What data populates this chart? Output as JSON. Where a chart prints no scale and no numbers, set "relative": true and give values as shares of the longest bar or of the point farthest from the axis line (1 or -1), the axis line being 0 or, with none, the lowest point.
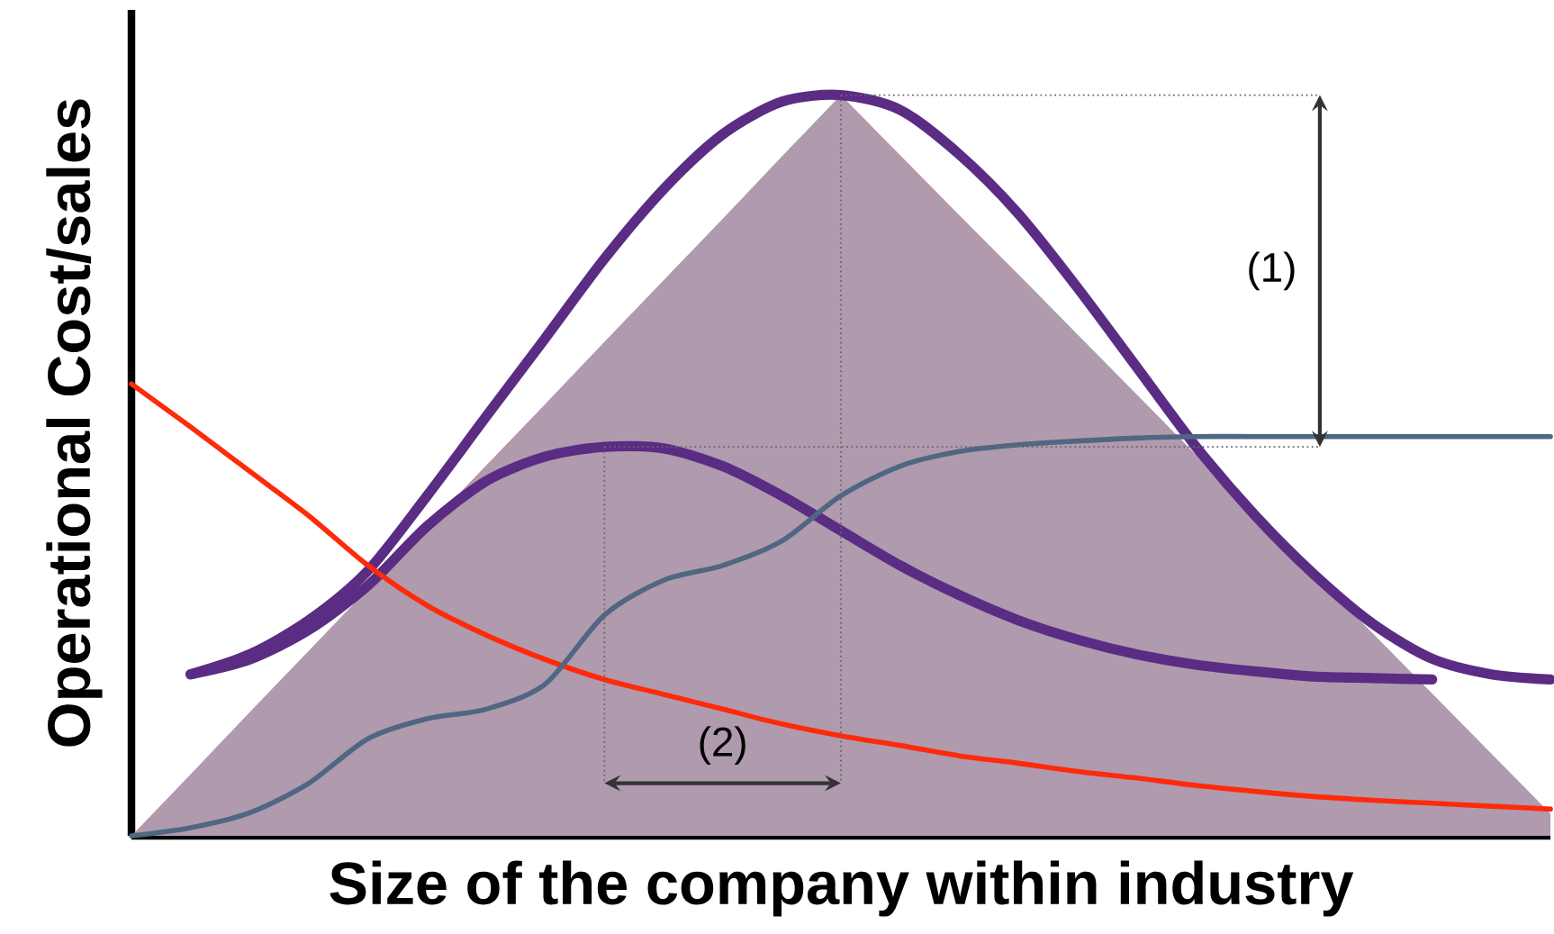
{
  "chart_data": {
    "type": "line",
    "relative": true,
    "xlabel": "Size of the company within industry",
    "ylabel": "Operational Cost/sales",
    "categories": [
      null,
      null,
      null,
      null,
      null,
      null,
      null,
      null,
      null,
      null,
      null,
      null,
      null,
      null,
      null,
      null,
      null,
      null,
      null,
      null,
      null,
      null,
      null,
      null,
      null
    ],
    "annotations": [
      "(1)",
      "(2)"
    ],
    "ref_lines": [
      {
        "axis": "y",
        "value": 1.0,
        "line_style": "dotted",
        "color": "#666666"
      },
      {
        "axis": "y",
        "value": 0.525,
        "line_style": "dotted",
        "color": "#666666"
      }
    ],
    "series": [
      {
        "type": "area",
        "color": "#b09aae",
        "values": [
          0,
          0.083,
          0.167,
          0.25,
          0.333,
          0.417,
          0.5,
          0.583,
          0.667,
          0.75,
          0.833,
          0.917,
          1.0,
          0.919,
          0.838,
          0.758,
          0.677,
          0.596,
          0.515,
          0.434,
          0.353,
          0.273,
          0.192,
          0.111,
          0.03
        ]
      },
      {
        "color": "#5b2c83",
        "values": [
          null,
          0.218,
          0.245,
          0.291,
          0.358,
          0.459,
          0.566,
          0.672,
          0.779,
          0.873,
          0.947,
          0.991,
          1.0,
          0.98,
          0.92,
          0.84,
          0.74,
          0.633,
          0.526,
          0.433,
          0.353,
          0.286,
          0.239,
          0.218,
          0.211
        ]
      },
      {
        "color": "#5b2c83",
        "values": [
          null,
          0.218,
          0.238,
          0.278,
          0.338,
          0.418,
          0.479,
          0.512,
          0.525,
          0.523,
          0.499,
          0.459,
          0.412,
          0.365,
          0.325,
          0.291,
          0.265,
          0.245,
          0.231,
          0.222,
          0.215,
          0.213,
          0.211,
          null,
          null
        ]
      },
      {
        "color": "#ff2a0a",
        "values": [
          0.61,
          0.552,
          0.492,
          0.432,
          0.365,
          0.311,
          0.271,
          0.238,
          0.211,
          0.191,
          0.171,
          0.151,
          0.135,
          0.122,
          0.108,
          0.098,
          0.087,
          0.078,
          0.068,
          0.06,
          0.053,
          0.048,
          0.044,
          0.04,
          0.036
        ]
      },
      {
        "color": "#4f6782",
        "values": [
          0,
          0.011,
          0.031,
          0.071,
          0.131,
          0.158,
          0.171,
          0.205,
          0.298,
          0.345,
          0.365,
          0.398,
          0.459,
          0.499,
          0.519,
          0.528,
          0.533,
          0.537,
          0.539,
          0.539,
          0.539,
          0.539,
          0.539,
          0.539,
          0.539
        ]
      }
    ]
  }
}
